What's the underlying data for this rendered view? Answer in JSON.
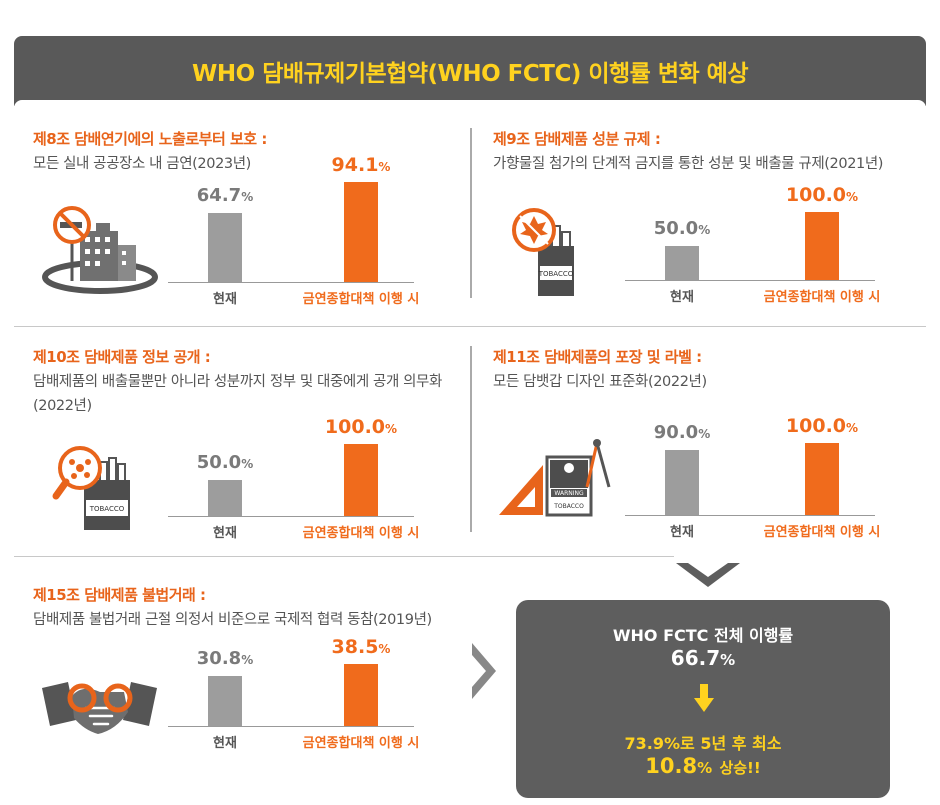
{
  "header": {
    "title": "WHO 담배규제기본협약(WHO FCTC) 이행률 변화 예상"
  },
  "sections": [
    {
      "title": "제8조 담배연기에의 노출로부터 보호 :",
      "desc": "모든 실내 공공장소 내 금연(2023년)",
      "icon": "no-smoking-building-icon"
    },
    {
      "title": "제9조 담배제품 성분 규제 :",
      "desc": "가향물질 첨가의 단계적 금지를 통한 성분 및 배출물 규제(2021년)",
      "icon": "banned-tobacco-pack-icon"
    },
    {
      "title": "제10조 담배제품 정보 공개 :",
      "desc": "담배제품의 배출물뿐만 아니라 성분까지 정부 및 대중에게 공개 의무화(2022년)",
      "icon": "magnifier-tobacco-icon"
    },
    {
      "title": "제11조 담배제품의 포장 및 라벨 :",
      "desc": "모든 담뱃갑 디자인 표준화(2022년)",
      "icon": "ruler-compass-tobacco-icon"
    },
    {
      "title": "제15조 담배제품 불법거래 :",
      "desc": "담배제품 불법거래 근절 의정서 비준으로 국제적 협력 동참(2019년)",
      "icon": "handshake-icon"
    }
  ],
  "chart_data": [
    {
      "type": "bar",
      "categories": [
        "현재",
        "금연종합대책 이행 시"
      ],
      "values": [
        64.7,
        94.1
      ],
      "value_labels": [
        "64.7",
        "94.1"
      ],
      "unit": "%"
    },
    {
      "type": "bar",
      "categories": [
        "현재",
        "금연종합대책 이행 시"
      ],
      "values": [
        50.0,
        100.0
      ],
      "value_labels": [
        "50.0",
        "100.0"
      ],
      "unit": "%"
    },
    {
      "type": "bar",
      "categories": [
        "현재",
        "금연종합대책 이행 시"
      ],
      "values": [
        50.0,
        100.0
      ],
      "value_labels": [
        "50.0",
        "100.0"
      ],
      "unit": "%"
    },
    {
      "type": "bar",
      "categories": [
        "현재",
        "금연종합대책 이행 시"
      ],
      "values": [
        90.0,
        100.0
      ],
      "value_labels": [
        "90.0",
        "100.0"
      ],
      "unit": "%"
    },
    {
      "type": "bar",
      "categories": [
        "현재",
        "금연종합대책 이행 시"
      ],
      "values": [
        30.8,
        38.5
      ],
      "value_labels": [
        "30.8",
        "38.5"
      ],
      "unit": "%"
    }
  ],
  "summary": {
    "label": "WHO FCTC 전체 이행률",
    "current": "66.7",
    "unit": "%",
    "increase_prefix": "73.9%로 5년 후 최소",
    "increase_value": "10.8",
    "increase_suffix": "상승!!"
  },
  "colors": {
    "accent": "#f06b1c",
    "header_bg": "#595959",
    "header_text": "#ffd21f",
    "bar_current": "#9d9d9d"
  }
}
